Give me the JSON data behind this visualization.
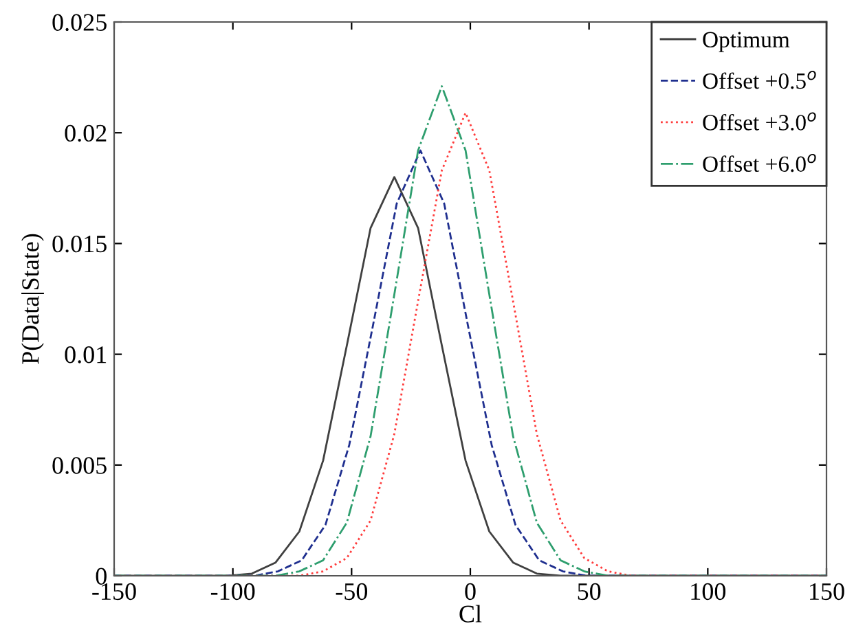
{
  "chart_data": {
    "type": "line",
    "xlabel": "Cl",
    "ylabel": "P(Data|State)",
    "xlim": [
      -150,
      150
    ],
    "xticks": [
      -150,
      -100,
      -50,
      0,
      50,
      100,
      150
    ],
    "ylim": [
      0,
      0.025
    ],
    "yticks": [
      0,
      0.005,
      0.01,
      0.015,
      0.02,
      0.025
    ],
    "grid": false,
    "legend": "top right",
    "marker": "none",
    "series": [
      {
        "name": "Optimum",
        "color": "#404040",
        "line_style": "solid",
        "x": [
          -150,
          -112,
          -102,
          -92,
          -82,
          -72,
          -62,
          -52,
          -42,
          -32,
          -22,
          -12,
          -2,
          8,
          18,
          28,
          38,
          48,
          150
        ],
        "values": [
          0,
          0,
          0,
          0.0001,
          0.0006,
          0.002,
          0.0052,
          0.0104,
          0.0157,
          0.018,
          0.0157,
          0.0104,
          0.0052,
          0.002,
          0.0006,
          0.0001,
          0,
          0,
          0
        ]
      },
      {
        "name": "Offset +0.5$^{o}$",
        "color": "#1f2f8f",
        "line_style": "dashed",
        "x": [
          -150,
          -101,
          -91,
          -81,
          -71,
          -61,
          -51,
          -41,
          -31,
          -21,
          -11,
          -1,
          9,
          19,
          29,
          39,
          49,
          59,
          150
        ],
        "values": [
          0,
          0,
          0,
          0.0002,
          0.0007,
          0.0023,
          0.0059,
          0.0113,
          0.0168,
          0.0192,
          0.0168,
          0.0113,
          0.0059,
          0.0023,
          0.0007,
          0.0002,
          0,
          0,
          0
        ]
      },
      {
        "name": "Offset +3.0$^{o}$",
        "color": "#ff3b3b",
        "line_style": "dotted",
        "x": [
          -150,
          -82,
          -72,
          -62,
          -52,
          -42,
          -32,
          -22,
          -12,
          -2,
          8,
          18,
          28,
          38,
          48,
          58,
          68,
          78,
          150
        ],
        "values": [
          0,
          0,
          0,
          0.0002,
          0.0008,
          0.0025,
          0.0064,
          0.0124,
          0.0183,
          0.0209,
          0.0183,
          0.0124,
          0.0064,
          0.0025,
          0.0008,
          0.0002,
          0,
          0,
          0
        ]
      },
      {
        "name": "Offset +6.0$^{o}$",
        "color": "#2e9e6e",
        "line_style": "dashdot",
        "x": [
          -150,
          -92,
          -82,
          -72,
          -62,
          -52,
          -42,
          -32,
          -22,
          -12,
          -2,
          8,
          18,
          28,
          38,
          48,
          58,
          68,
          150
        ],
        "values": [
          0,
          0,
          0,
          0.0002,
          0.0007,
          0.0024,
          0.0063,
          0.0127,
          0.0192,
          0.0221,
          0.0192,
          0.0127,
          0.0063,
          0.0024,
          0.0007,
          0.0002,
          0,
          0,
          0
        ]
      }
    ]
  }
}
